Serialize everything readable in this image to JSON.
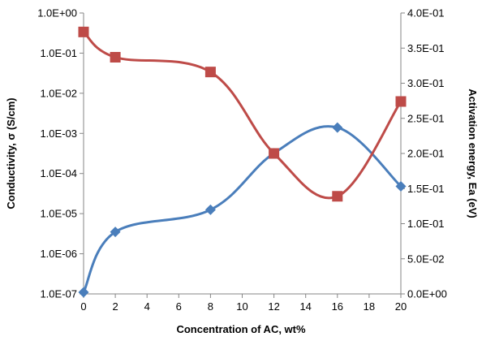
{
  "chart_data": {
    "type": "line",
    "xlabel": "Concentration of AC, wt%",
    "ylabel_left": "Conductivity, σ (S/cm)",
    "ylabel_right": "Activation energy, Ea (eV)",
    "x_ticks": [
      "0",
      "2",
      "4",
      "6",
      "8",
      "10",
      "12",
      "14",
      "16",
      "18",
      "20"
    ],
    "xlim": [
      0,
      20
    ],
    "y_left": {
      "scale": "log",
      "lim": [
        1e-07,
        1
      ],
      "ticks": [
        {
          "value": 1,
          "label": "1.0E+00"
        },
        {
          "value": 0.1,
          "label": "1.0E-01"
        },
        {
          "value": 0.01,
          "label": "1.0E-02"
        },
        {
          "value": 0.001,
          "label": "1.0E-03"
        },
        {
          "value": 0.0001,
          "label": "1.0E-04"
        },
        {
          "value": 1e-05,
          "label": "1.0E-05"
        },
        {
          "value": 1e-06,
          "label": "1.0E-06"
        },
        {
          "value": 1e-07,
          "label": "1.0E-07"
        }
      ]
    },
    "y_right": {
      "scale": "linear",
      "lim": [
        0,
        0.4
      ],
      "ticks": [
        {
          "value": 0.4,
          "label": "4.0E-01"
        },
        {
          "value": 0.35,
          "label": "3.5E-01"
        },
        {
          "value": 0.3,
          "label": "3.0E-01"
        },
        {
          "value": 0.25,
          "label": "2.5E-01"
        },
        {
          "value": 0.2,
          "label": "2.0E-01"
        },
        {
          "value": 0.15,
          "label": "1.5E-01"
        },
        {
          "value": 0.1,
          "label": "1.0E-01"
        },
        {
          "value": 0.05,
          "label": "5.0E-02"
        },
        {
          "value": 0,
          "label": "0.0E+00"
        }
      ]
    },
    "grid": false,
    "legend": "none",
    "series": [
      {
        "axis": "left",
        "color": "#4a7ebb",
        "marker": "diamond",
        "x": [
          0,
          2,
          8,
          12,
          16,
          20
        ],
        "y": [
          1.1e-07,
          3.5e-06,
          1.25e-05,
          0.00032,
          0.0014,
          4.8e-05
        ]
      },
      {
        "axis": "right",
        "color": "#be4b48",
        "marker": "square",
        "x": [
          0,
          2,
          8,
          12,
          16,
          20
        ],
        "y": [
          0.373,
          0.337,
          0.316,
          0.2,
          0.139,
          0.274
        ]
      }
    ]
  }
}
